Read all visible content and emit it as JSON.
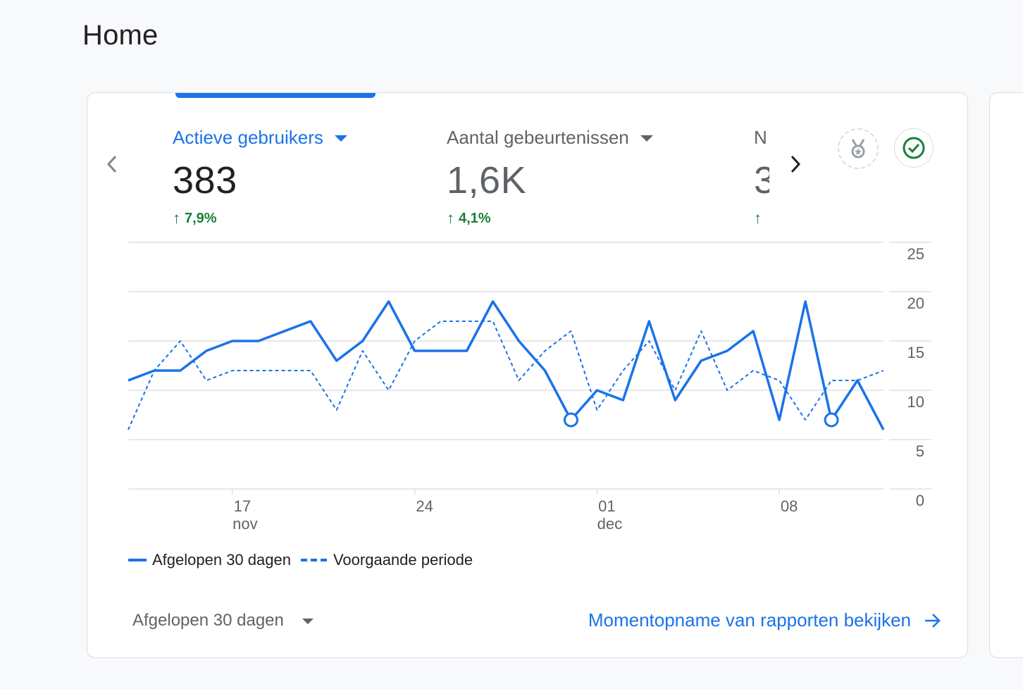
{
  "page": {
    "title": "Home"
  },
  "colors": {
    "accent": "#1a73e8",
    "positive": "#188038",
    "muted": "#5f6368",
    "text": "#202124",
    "grid": "#e0e0e0"
  },
  "metrics": [
    {
      "label": "Actieve gebruikers",
      "value": "383",
      "change": "7,9%",
      "active": true
    },
    {
      "label": "Aantal gebeurtenissen",
      "value": "1,6K",
      "change": "4,1%",
      "active": false
    },
    {
      "label": "N",
      "value": "3",
      "change": "",
      "active": false
    }
  ],
  "icons": {
    "prev": "chevron-left-icon",
    "next": "chevron-right-icon",
    "badge": "medal-icon",
    "check": "check-circle-icon",
    "arrow": "arrow-right-icon"
  },
  "chart_data": {
    "type": "line",
    "x_tick_labels": [
      {
        "day": "17",
        "month": "nov"
      },
      {
        "day": "24",
        "month": ""
      },
      {
        "day": "01",
        "month": "dec"
      },
      {
        "day": "08",
        "month": ""
      }
    ],
    "y_ticks": [
      0,
      5,
      10,
      15,
      20,
      25
    ],
    "ylim": [
      0,
      25
    ],
    "series": [
      {
        "name": "Afgelopen 30 dagen",
        "style": "solid",
        "values": [
          11,
          12,
          12,
          14,
          15,
          15,
          16,
          17,
          13,
          15,
          19,
          14,
          14,
          14,
          19,
          15,
          12,
          7,
          10,
          9,
          17,
          9,
          13,
          14,
          16,
          7,
          19,
          7,
          11,
          6
        ],
        "markers_at": [
          17,
          27
        ]
      },
      {
        "name": "Voorgaande periode",
        "style": "dashed",
        "values": [
          6,
          12,
          15,
          11,
          12,
          12,
          12,
          12,
          8,
          14,
          10,
          15,
          17,
          17,
          17,
          11,
          14,
          16,
          8,
          12,
          15,
          10,
          16,
          10,
          12,
          11,
          7,
          11,
          11,
          12
        ]
      }
    ]
  },
  "legend": {
    "current": "Afgelopen 30 dagen",
    "previous": "Voorgaande periode"
  },
  "footer": {
    "range_label": "Afgelopen 30 dagen",
    "link_label": "Momentopname van rapporten bekijken"
  }
}
